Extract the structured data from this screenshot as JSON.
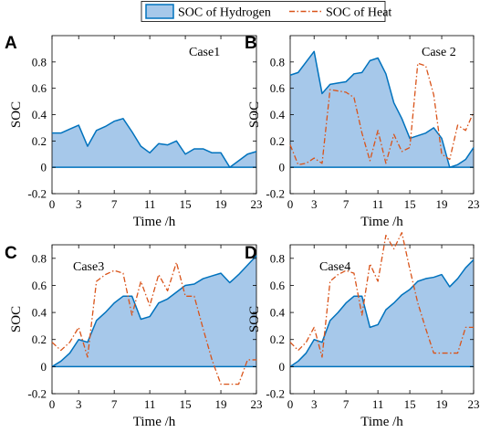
{
  "legend": {
    "items": [
      {
        "label": "SOC of Hydrogen",
        "color": "#0072bd",
        "fill": "#a6c8ea"
      },
      {
        "label": "SOC of Heat",
        "color": "#d95319"
      }
    ]
  },
  "chart_data": [
    {
      "type": "area",
      "panel_label": "A",
      "title": "Case1",
      "xlabel": "Time /h",
      "ylabel": "SOC",
      "xlim": [
        0,
        23
      ],
      "ylim": [
        -0.2,
        1.0
      ],
      "xticks": [
        0,
        3,
        7,
        11,
        15,
        19,
        23
      ],
      "yticks": [
        -0.2,
        0,
        0.2,
        0.4,
        0.6,
        0.8
      ],
      "x": [
        0,
        1,
        2,
        3,
        4,
        5,
        6,
        7,
        8,
        9,
        10,
        11,
        12,
        13,
        14,
        15,
        16,
        17,
        18,
        19,
        20,
        21,
        22,
        23
      ],
      "series": [
        {
          "name": "SOC of Hydrogen",
          "values": [
            0.26,
            0.26,
            0.29,
            0.32,
            0.16,
            0.28,
            0.31,
            0.35,
            0.37,
            0.27,
            0.16,
            0.11,
            0.18,
            0.17,
            0.2,
            0.1,
            0.14,
            0.14,
            0.11,
            0.11,
            0.0,
            0.05,
            0.1,
            0.12
          ]
        }
      ]
    },
    {
      "type": "area",
      "panel_label": "B",
      "title": "Case 2",
      "xlabel": "Time /h",
      "ylabel": "SOC",
      "xlim": [
        0,
        23
      ],
      "ylim": [
        -0.2,
        1.0
      ],
      "xticks": [
        0,
        3,
        7,
        11,
        15,
        19,
        23
      ],
      "yticks": [
        -0.2,
        0,
        0.2,
        0.4,
        0.6,
        0.8
      ],
      "x": [
        0,
        1,
        2,
        3,
        4,
        5,
        6,
        7,
        8,
        9,
        10,
        11,
        12,
        13,
        14,
        15,
        16,
        17,
        18,
        19,
        20,
        21,
        22,
        23
      ],
      "series": [
        {
          "name": "SOC of Hydrogen",
          "values": [
            0.7,
            0.72,
            0.8,
            0.88,
            0.56,
            0.63,
            0.64,
            0.65,
            0.71,
            0.72,
            0.81,
            0.83,
            0.71,
            0.49,
            0.37,
            0.22,
            0.24,
            0.26,
            0.3,
            0.22,
            0.0,
            0.02,
            0.06,
            0.15
          ]
        },
        {
          "name": "SOC of Heat",
          "values": [
            0.17,
            0.02,
            0.03,
            0.07,
            0.03,
            0.59,
            0.58,
            0.57,
            0.53,
            0.26,
            0.05,
            0.28,
            0.03,
            0.25,
            0.12,
            0.15,
            0.79,
            0.77,
            0.55,
            0.1,
            0.06,
            0.32,
            0.28,
            0.42
          ]
        }
      ]
    },
    {
      "type": "area",
      "panel_label": "C",
      "title": "Case3",
      "xlabel": "Time /h",
      "ylabel": "SOC",
      "xlim": [
        0,
        23
      ],
      "ylim": [
        -0.2,
        0.9
      ],
      "xticks": [
        0,
        3,
        7,
        11,
        15,
        19,
        23
      ],
      "yticks": [
        -0.2,
        0,
        0.2,
        0.4,
        0.6,
        0.8
      ],
      "x": [
        0,
        1,
        2,
        3,
        4,
        5,
        6,
        7,
        8,
        9,
        10,
        11,
        12,
        13,
        14,
        15,
        16,
        17,
        18,
        19,
        20,
        21,
        22,
        23
      ],
      "series": [
        {
          "name": "SOC of Hydrogen",
          "values": [
            0.0,
            0.04,
            0.1,
            0.2,
            0.18,
            0.34,
            0.4,
            0.47,
            0.52,
            0.52,
            0.35,
            0.37,
            0.47,
            0.5,
            0.55,
            0.6,
            0.61,
            0.65,
            0.67,
            0.69,
            0.62,
            0.68,
            0.75,
            0.82
          ]
        },
        {
          "name": "SOC of Heat",
          "values": [
            0.18,
            0.12,
            0.18,
            0.29,
            0.07,
            0.63,
            0.68,
            0.71,
            0.69,
            0.38,
            0.63,
            0.45,
            0.68,
            0.56,
            0.77,
            0.52,
            0.52,
            0.28,
            0.05,
            -0.13,
            -0.13,
            -0.13,
            0.05,
            0.05
          ]
        }
      ]
    },
    {
      "type": "area",
      "panel_label": "D",
      "title": "Case4",
      "xlabel": "Time /h",
      "ylabel": "SOC",
      "xlim": [
        0,
        23
      ],
      "ylim": [
        -0.2,
        0.9
      ],
      "xticks": [
        0,
        3,
        7,
        11,
        15,
        19,
        23
      ],
      "yticks": [
        -0.2,
        0,
        0.2,
        0.4,
        0.6,
        0.8
      ],
      "x": [
        0,
        1,
        2,
        3,
        4,
        5,
        6,
        7,
        8,
        9,
        10,
        11,
        12,
        13,
        14,
        15,
        16,
        17,
        18,
        19,
        20,
        21,
        22,
        23
      ],
      "series": [
        {
          "name": "SOC of Hydrogen",
          "values": [
            0.0,
            0.04,
            0.1,
            0.2,
            0.18,
            0.34,
            0.4,
            0.47,
            0.52,
            0.52,
            0.29,
            0.31,
            0.42,
            0.47,
            0.53,
            0.57,
            0.63,
            0.65,
            0.66,
            0.68,
            0.59,
            0.65,
            0.73,
            0.79
          ]
        },
        {
          "name": "SOC of Heat",
          "values": [
            0.18,
            0.12,
            0.18,
            0.29,
            0.07,
            0.63,
            0.68,
            0.71,
            0.69,
            0.38,
            0.76,
            0.63,
            0.97,
            0.87,
            0.99,
            0.72,
            0.47,
            0.28,
            0.1,
            0.1,
            0.1,
            0.1,
            0.29,
            0.29
          ]
        }
      ]
    }
  ]
}
